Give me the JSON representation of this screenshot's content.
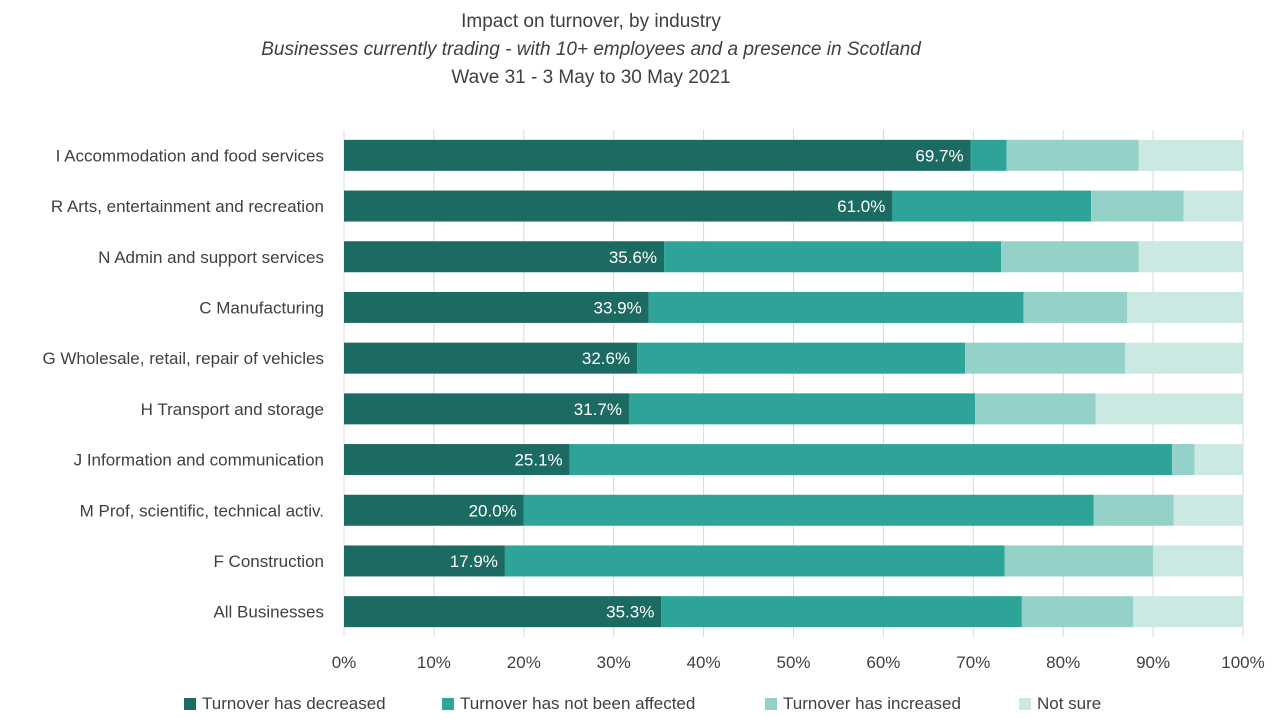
{
  "chart_data": {
    "type": "bar",
    "orientation": "horizontal",
    "stacked": true,
    "title": "Impact on turnover, by industry",
    "subtitle": "Businesses currently trading -  with 10+ employees and a presence in Scotland",
    "subtitle2": "Wave 31 - 3 May to 30 May 2021",
    "categories": [
      "I Accommodation and food services",
      "R Arts, entertainment and recreation",
      "N Admin and support services",
      "C Manufacturing",
      "G Wholesale, retail, repair of vehicles",
      "H Transport and storage",
      "J Information and communication",
      "M Prof, scientific, technical activ.",
      "F Construction",
      "All Businesses"
    ],
    "series": [
      {
        "name": "Turnover has decreased",
        "color": "#1c6b62",
        "values": [
          69.7,
          61.0,
          35.6,
          33.9,
          32.6,
          31.7,
          25.1,
          20.0,
          17.9,
          35.3
        ]
      },
      {
        "name": "Turnover has not been affected",
        "color": "#2ea498",
        "values": [
          4.0,
          22.1,
          37.5,
          41.7,
          36.5,
          38.5,
          67.0,
          63.4,
          55.6,
          40.1
        ]
      },
      {
        "name": "Turnover has increased",
        "color": "#94d2c9",
        "values": [
          14.7,
          10.3,
          15.3,
          11.5,
          17.8,
          13.4,
          2.5,
          8.9,
          16.5,
          12.4
        ]
      },
      {
        "name": "Not sure",
        "color": "#cbe8e2",
        "values": [
          11.6,
          6.6,
          11.6,
          12.9,
          13.1,
          16.4,
          5.4,
          7.7,
          10.0,
          12.2
        ]
      }
    ],
    "data_labels": {
      "series_index": 0,
      "text": [
        "69.7%",
        "61.0%",
        "35.6%",
        "33.9%",
        "32.6%",
        "31.7%",
        "25.1%",
        "20.0%",
        "17.9%",
        "35.3%"
      ]
    },
    "x_ticks": [
      "0%",
      "10%",
      "20%",
      "30%",
      "40%",
      "50%",
      "60%",
      "70%",
      "80%",
      "90%",
      "100%"
    ],
    "xlim": [
      0,
      100
    ],
    "grid": true,
    "legend_position": "bottom"
  }
}
